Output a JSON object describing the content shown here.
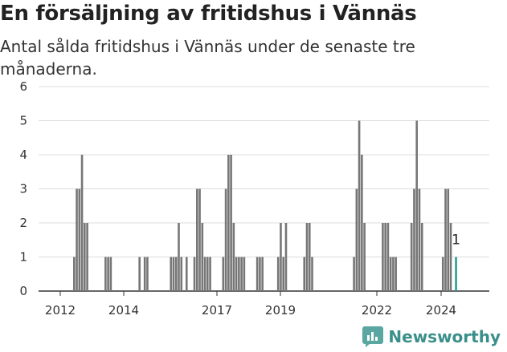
{
  "header": {
    "title": "En försäljning av fritidshus i Vännäs",
    "subtitle": "Antal sålda fritidshus i Vännäs under de senaste tre månaderna."
  },
  "brand": {
    "name": "Newsworthy",
    "color": "#3a8f8a"
  },
  "chart_data": {
    "type": "bar",
    "title": "En försäljning av fritidshus i Vännäs",
    "subtitle": "Antal sålda fritidshus i Vännäs under de senaste tre månaderna.",
    "xlabel": "",
    "ylabel": "",
    "ylim": [
      0,
      6
    ],
    "yticks": [
      0,
      1,
      2,
      3,
      4,
      5,
      6
    ],
    "xticks": [
      "2012",
      "2014",
      "2017",
      "2019",
      "2022",
      "2024"
    ],
    "grid": true,
    "bar_color": "#767676",
    "highlight_color": "#2a9d8f",
    "annotation": "1",
    "series": [
      {
        "values": [
          1,
          3,
          3,
          4,
          2,
          2,
          0,
          0,
          0,
          0,
          0,
          0,
          1,
          1,
          1,
          0,
          0,
          0,
          0,
          0,
          0,
          0,
          0,
          0,
          0,
          1,
          0,
          1,
          1,
          0,
          0,
          0,
          0,
          0,
          0,
          0,
          0,
          1,
          1,
          1,
          2,
          1,
          0,
          1,
          0,
          0,
          1,
          3,
          3,
          2,
          1,
          1,
          1,
          0,
          0,
          0,
          0,
          1,
          3,
          4,
          4,
          2,
          1,
          1,
          1,
          1,
          0,
          0,
          0,
          0,
          1,
          1,
          1,
          0,
          0,
          0,
          0,
          0,
          1,
          2,
          1,
          2,
          0,
          0,
          0,
          0,
          0,
          0,
          1,
          2,
          2,
          1,
          0,
          0,
          0,
          0,
          0,
          0,
          0,
          0,
          0,
          0,
          0,
          0,
          0,
          0,
          0,
          1,
          3,
          5,
          4,
          2,
          0,
          0,
          0,
          0,
          0,
          0,
          2,
          2,
          2,
          1,
          1,
          1,
          0,
          0,
          0,
          0,
          0,
          2,
          3,
          5,
          3,
          2,
          0,
          0,
          0,
          0,
          0,
          0,
          0,
          1,
          3,
          3,
          2,
          0,
          1
        ]
      }
    ]
  }
}
